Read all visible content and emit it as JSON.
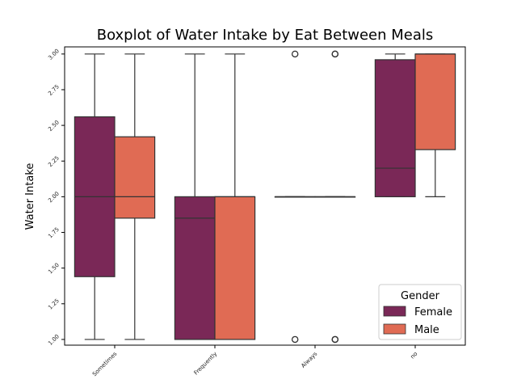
{
  "chart_data": {
    "type": "boxplot",
    "title": "Boxplot of Water Intake by Eat Between Meals",
    "xlabel": "",
    "ylabel": "Water Intake",
    "categories": [
      "Sometimes",
      "Frequently",
      "Always",
      "no"
    ],
    "ylim": [
      0.96,
      3.05
    ],
    "yticks": [
      "1.00",
      "1.25",
      "1.50",
      "1.75",
      "2.00",
      "2.25",
      "2.50",
      "2.75",
      "3.00"
    ],
    "legend": {
      "title": "Gender",
      "placement": "lower-right"
    },
    "grid": false,
    "series": [
      {
        "name": "Female",
        "color": "#7a2857",
        "boxes": [
          {
            "whisker_low": 1.0,
            "q1": 1.44,
            "median": 2.0,
            "q3": 2.56,
            "whisker_high": 3.0,
            "outliers": []
          },
          {
            "whisker_low": 1.0,
            "q1": 1.0,
            "median": 1.85,
            "q3": 2.0,
            "whisker_high": 3.0,
            "outliers": []
          },
          {
            "whisker_low": 2.0,
            "q1": 2.0,
            "median": 2.0,
            "q3": 2.0,
            "whisker_high": 2.0,
            "outliers": [
              1.0,
              3.0
            ]
          },
          {
            "whisker_low": 2.0,
            "q1": 2.0,
            "median": 2.2,
            "q3": 2.96,
            "whisker_high": 3.0,
            "outliers": []
          }
        ]
      },
      {
        "name": "Male",
        "color": "#e06b54",
        "boxes": [
          {
            "whisker_low": 1.0,
            "q1": 1.85,
            "median": 2.0,
            "q3": 2.42,
            "whisker_high": 3.0,
            "outliers": []
          },
          {
            "whisker_low": 1.0,
            "q1": 1.0,
            "median": 2.0,
            "q3": 2.0,
            "whisker_high": 3.0,
            "outliers": []
          },
          {
            "whisker_low": 2.0,
            "q1": 2.0,
            "median": 2.0,
            "q3": 2.0,
            "whisker_high": 2.0,
            "outliers": [
              1.0,
              1.0,
              3.0,
              3.0
            ]
          },
          {
            "whisker_low": 2.0,
            "q1": 2.33,
            "median": 3.0,
            "q3": 3.0,
            "whisker_high": 3.0,
            "outliers": []
          }
        ]
      }
    ]
  }
}
